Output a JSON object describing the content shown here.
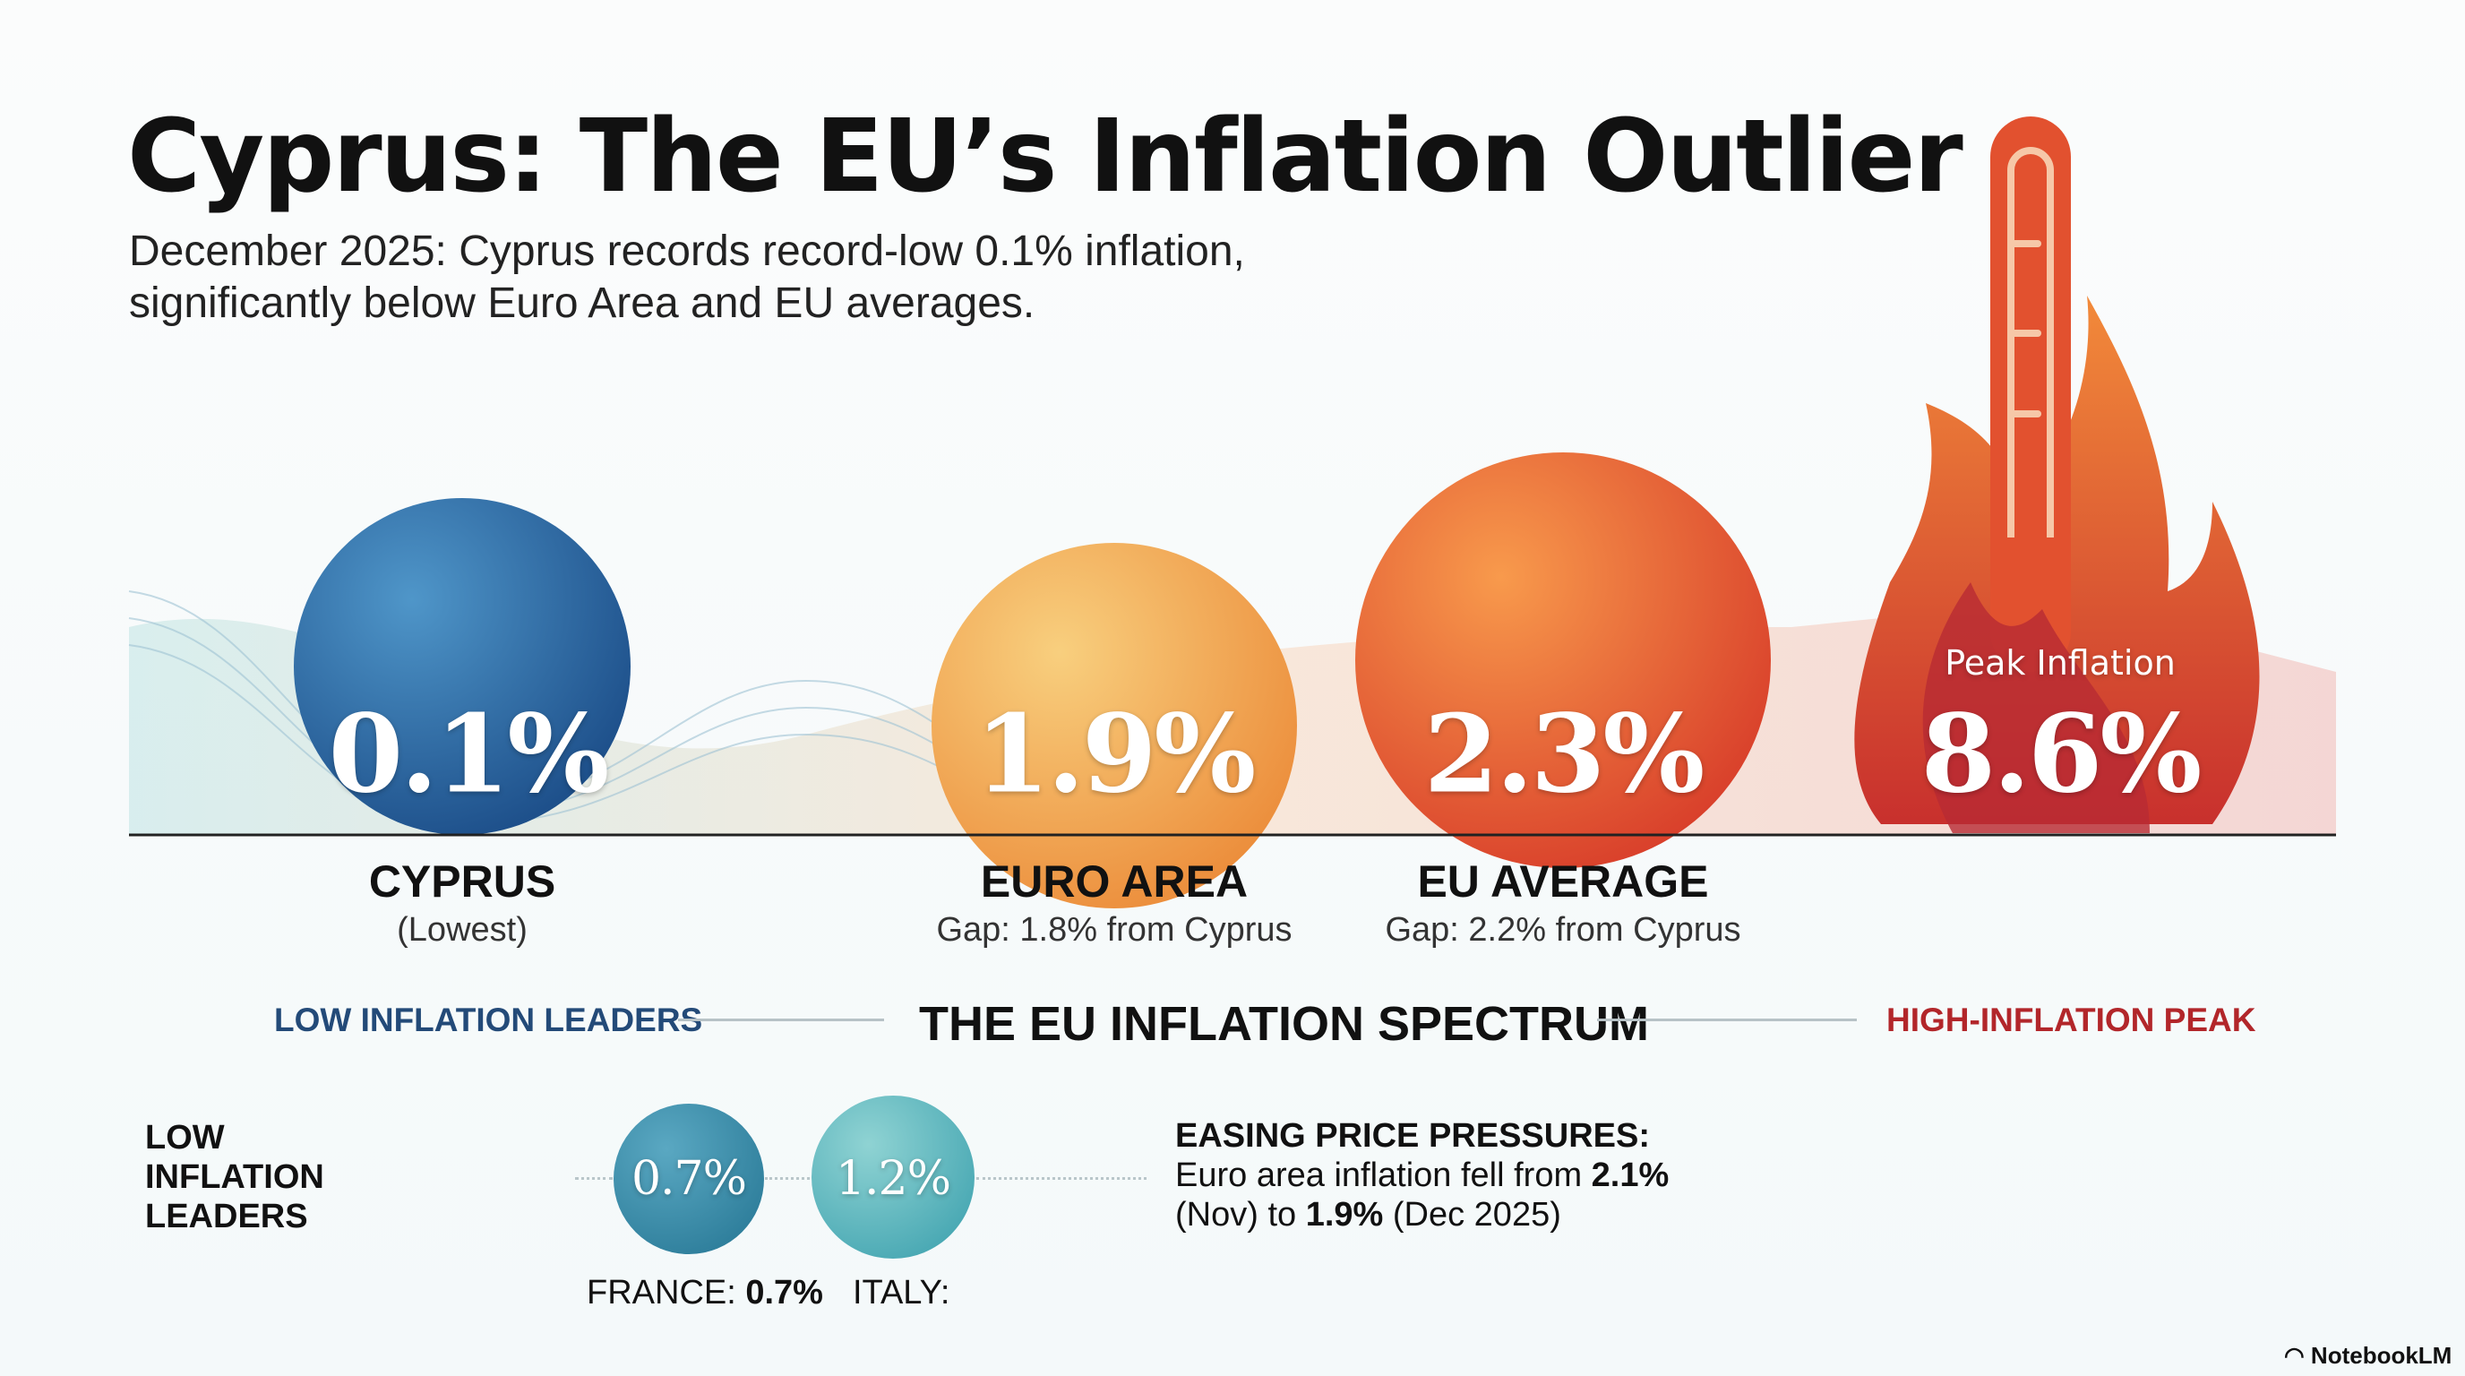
{
  "title": "Cyprus: The EU’s Inflation Outlier",
  "subtitle": [
    "December 2025: Cyprus records record-low 0.1% inflation,",
    "significantly below Euro Area and EU averages."
  ],
  "bubbles": [
    {
      "value": "0.1%",
      "name": "CYPRUS",
      "note": "(Lowest)",
      "color": "#2a6aa6"
    },
    {
      "value": "1.9%",
      "name": "EURO AREA",
      "note": "Gap: 1.8% from Cyprus",
      "color": "#f0a84f"
    },
    {
      "value": "2.3%",
      "name": "EU AVERAGE",
      "note": "Gap: 2.2% from Cyprus",
      "color": "#e8582e"
    },
    {
      "value": "8.6%",
      "caption": "Peak Inflation",
      "color": "#c0282e"
    }
  ],
  "spectrum": {
    "left": "LOW INFLATION LEADERS",
    "center": "THE EU INFLATION SPECTRUM",
    "right": "HIGH-INFLATION PEAK",
    "left_color": "#234a78",
    "right_color": "#b2262a"
  },
  "leaders": {
    "heading": [
      "LOW",
      "INFLATION",
      "LEADERS"
    ],
    "items": [
      {
        "value": "0.7%",
        "label": "FRANCE:",
        "label_value": "0.7%"
      },
      {
        "value": "1.2%",
        "label": "ITALY:"
      }
    ]
  },
  "easing": {
    "heading": "EASING PRICE PRESSURES:",
    "line1": "Euro area inflation fell from ",
    "v1": "2.1%",
    "line2a": "(Nov) to ",
    "v2": "1.9%",
    "line2b": " (Dec 2025)"
  },
  "brand": "NotebookLM"
}
